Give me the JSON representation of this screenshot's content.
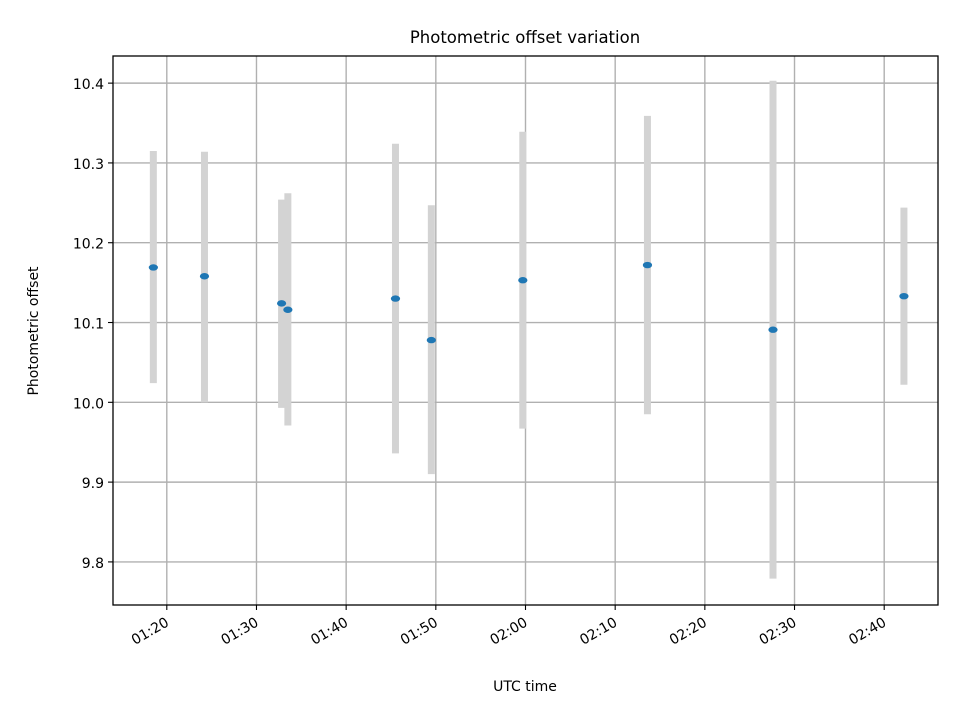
{
  "chart_data": {
    "type": "scatter",
    "title": "Photometric offset variation",
    "xlabel": "UTC time",
    "ylabel": "Photometric offset",
    "xlim": [
      "01:14",
      "02:46"
    ],
    "ylim": [
      9.746,
      10.434
    ],
    "x_ticks": [
      "01:20",
      "01:30",
      "01:40",
      "01:50",
      "02:00",
      "02:10",
      "02:20",
      "02:30",
      "02:40"
    ],
    "y_ticks": [
      "9.8",
      "9.9",
      "10.0",
      "10.1",
      "10.2",
      "10.3",
      "10.4"
    ],
    "grid": true,
    "colors": {
      "point": "#1f77b4",
      "errorbar": "#d3d3d3",
      "grid": "#b0b0b0"
    },
    "points": [
      {
        "x": "01:18:30",
        "y": 10.169,
        "y_low": 10.024,
        "y_high": 10.315
      },
      {
        "x": "01:24:12",
        "y": 10.158,
        "y_low": 10.0,
        "y_high": 10.314
      },
      {
        "x": "01:32:48",
        "y": 10.124,
        "y_low": 9.993,
        "y_high": 10.254
      },
      {
        "x": "01:33:30",
        "y": 10.116,
        "y_low": 9.971,
        "y_high": 10.262
      },
      {
        "x": "01:45:30",
        "y": 10.13,
        "y_low": 9.936,
        "y_high": 10.324
      },
      {
        "x": "01:49:30",
        "y": 10.078,
        "y_low": 9.91,
        "y_high": 10.247
      },
      {
        "x": "01:59:42",
        "y": 10.153,
        "y_low": 9.967,
        "y_high": 10.339
      },
      {
        "x": "02:13:36",
        "y": 10.172,
        "y_low": 9.985,
        "y_high": 10.359
      },
      {
        "x": "02:27:36",
        "y": 10.091,
        "y_low": 9.779,
        "y_high": 10.403
      },
      {
        "x": "02:42:12",
        "y": 10.133,
        "y_low": 10.022,
        "y_high": 10.244
      }
    ]
  }
}
